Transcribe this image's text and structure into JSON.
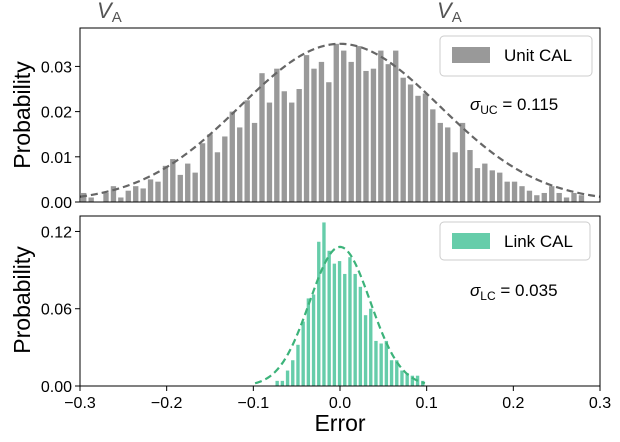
{
  "header": {
    "left_label": "V",
    "left_sub": "A",
    "right_label": "V",
    "right_sub": "A"
  },
  "chart_data": [
    {
      "type": "bar",
      "title": "",
      "xlabel": "",
      "ylabel": "Probability",
      "xlim": [
        -0.3,
        0.3
      ],
      "ylim": [
        0,
        0.0385
      ],
      "yticks": [
        0.0,
        0.01,
        0.02,
        0.03
      ],
      "ytick_labels": [
        "0.00",
        "0.01",
        "0.02",
        "0.03"
      ],
      "legend": {
        "label": "Unit CAL",
        "placement": "top-right"
      },
      "annotation": {
        "symbol": "σ",
        "sub": "UC",
        "text": " = 0.115"
      },
      "bar_color": "#999999",
      "curve_color": "#666666",
      "bin_width": 0.00857,
      "series": [
        {
          "name": "Unit CAL",
          "x": [
            -0.2957,
            -0.2871,
            -0.2786,
            -0.27,
            -0.2614,
            -0.2529,
            -0.2443,
            -0.2357,
            -0.2271,
            -0.2186,
            -0.21,
            -0.2014,
            -0.1929,
            -0.1843,
            -0.1757,
            -0.1671,
            -0.1586,
            -0.15,
            -0.1414,
            -0.1329,
            -0.1243,
            -0.1157,
            -0.1071,
            -0.0986,
            -0.09,
            -0.0814,
            -0.0729,
            -0.0643,
            -0.0557,
            -0.0471,
            -0.0386,
            -0.03,
            -0.0214,
            -0.0129,
            -0.0043,
            0.0043,
            0.0129,
            0.0214,
            0.03,
            0.0386,
            0.0471,
            0.0557,
            0.0643,
            0.0729,
            0.0814,
            0.09,
            0.0986,
            0.1071,
            0.1157,
            0.1243,
            0.1329,
            0.1414,
            0.15,
            0.1586,
            0.1671,
            0.1757,
            0.1843,
            0.1929,
            0.2014,
            0.21,
            0.2186,
            0.2271,
            0.2357,
            0.2443,
            0.2529,
            0.2614,
            0.27,
            0.2786
          ],
          "y": [
            0.002,
            0.001,
            0.0,
            0.002,
            0.0035,
            0.001,
            0.0025,
            0.0035,
            0.003,
            0.005,
            0.0045,
            0.008,
            0.0095,
            0.006,
            0.0085,
            0.0065,
            0.013,
            0.015,
            0.011,
            0.0145,
            0.02,
            0.0165,
            0.0225,
            0.0175,
            0.0285,
            0.022,
            0.0295,
            0.0245,
            0.022,
            0.025,
            0.0325,
            0.0295,
            0.031,
            0.0265,
            0.035,
            0.0335,
            0.031,
            0.0345,
            0.029,
            0.0295,
            0.0335,
            0.0305,
            0.0335,
            0.0275,
            0.026,
            0.0235,
            0.024,
            0.0205,
            0.0175,
            0.0165,
            0.011,
            0.0175,
            0.0115,
            0.0075,
            0.0085,
            0.007,
            0.0065,
            0.0045,
            0.0045,
            0.0035,
            0.0025,
            0.0015,
            0.002,
            0.0035,
            0.002,
            0.001,
            0.002,
            0.0015
          ]
        }
      ],
      "fit": {
        "type": "normal",
        "mean": 0.0,
        "std": 0.115,
        "peak": 0.035
      }
    },
    {
      "type": "bar",
      "title": "",
      "xlabel": "Error",
      "ylabel": "Probability",
      "xlim": [
        -0.3,
        0.3
      ],
      "ylim": [
        0,
        0.132
      ],
      "xticks": [
        -0.3,
        -0.2,
        -0.1,
        0.0,
        0.1,
        0.2,
        0.3
      ],
      "xtick_labels": [
        "−0.3",
        "−0.2",
        "−0.1",
        "0.0",
        "0.1",
        "0.2",
        "0.3"
      ],
      "yticks": [
        0.0,
        0.06,
        0.12
      ],
      "ytick_labels": [
        "0.00",
        "0.06",
        "0.12"
      ],
      "legend": {
        "label": "Link CAL",
        "placement": "top-right"
      },
      "annotation": {
        "symbol": "σ",
        "sub": "LC",
        "text": " = 0.035"
      },
      "bar_color": "#66cdaa",
      "curve_color": "#3cb37a",
      "bin_width": 0.0054,
      "series": [
        {
          "name": "Link CAL",
          "x": [
            -0.0725,
            -0.0665,
            -0.0605,
            -0.0545,
            -0.0485,
            -0.0425,
            -0.0365,
            -0.0305,
            -0.0245,
            -0.0185,
            -0.0125,
            -0.0065,
            -0.0005,
            0.0055,
            0.0115,
            0.0175,
            0.0235,
            0.0295,
            0.0355,
            0.0415,
            0.0475,
            0.0535,
            0.0595,
            0.0655,
            0.0715,
            0.0775,
            0.0835,
            0.0895,
            0.0955
          ],
          "y": [
            0.004,
            0.004,
            0.012,
            0.02,
            0.032,
            0.05,
            0.068,
            0.071,
            0.112,
            0.127,
            0.105,
            0.095,
            0.097,
            0.087,
            0.1,
            0.087,
            0.077,
            0.055,
            0.06,
            0.035,
            0.033,
            0.035,
            0.02,
            0.02,
            0.012,
            0.01,
            0.008,
            0.008,
            0.004
          ]
        }
      ],
      "fit": {
        "type": "normal",
        "mean": 0.0,
        "std": 0.035,
        "peak": 0.108
      }
    }
  ]
}
